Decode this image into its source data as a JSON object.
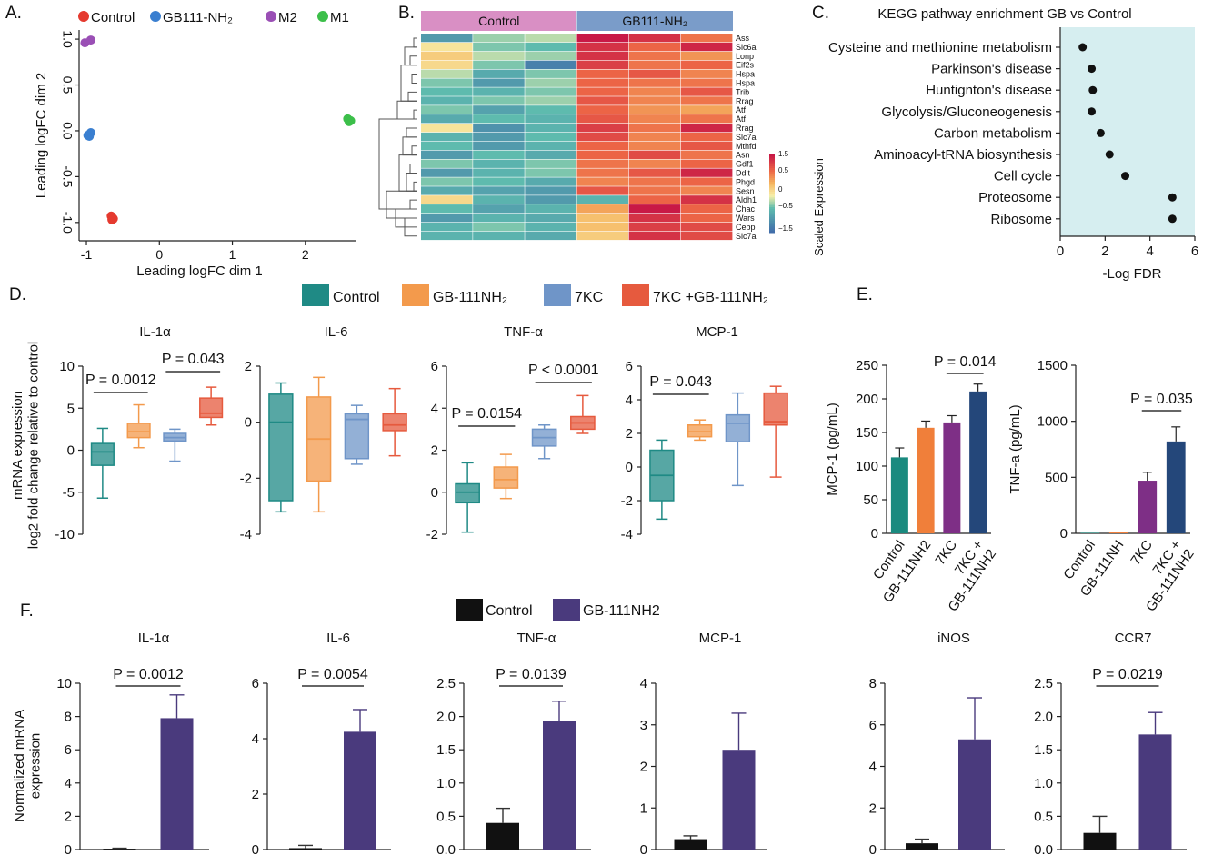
{
  "panel_letters": [
    "A.",
    "B.",
    "C.",
    "D.",
    "E.",
    "F."
  ],
  "colors": {
    "control": "#1f8a85",
    "gb": "#f39a4c",
    "k7": "#6f95c8",
    "k7gb": "#e65a3e",
    "e_control": "#1a8a7f",
    "e_gb": "#f07f3a",
    "e_7kc": "#7e2f86",
    "e_7kcgb": "#24477a",
    "f_control": "#111111",
    "f_gb": "#4a3a7d",
    "mds_control": "#e53a2f",
    "mds_gb": "#3a7fd0",
    "mds_m2": "#9a4fb5",
    "mds_m1": "#3cbf4a",
    "heat_header_control": "#d98fc4",
    "heat_header_gb": "#7a9cc9",
    "kegg_bg": "#d6eef0"
  },
  "chart_data": [
    {
      "id": "A",
      "type": "scatter",
      "xlabel": "Leading logFC dim 1",
      "ylabel": "Leading logFC dim 2",
      "xlim": [
        -1.1,
        2.7
      ],
      "ylim": [
        -1.2,
        1.1
      ],
      "xticks": [
        "-1",
        "0",
        "1",
        "2"
      ],
      "yticks": [
        "1.0",
        "0.5",
        "0.0",
        "-0.5",
        "-1.0"
      ],
      "legend": [
        "Control",
        "GB111-NH₂",
        "M2",
        "M1"
      ],
      "series": [
        {
          "name": "Control",
          "points": [
            [
              -0.66,
              -0.93
            ],
            [
              -0.64,
              -0.95
            ],
            [
              -0.65,
              -0.97
            ],
            [
              -0.63,
              -0.96
            ]
          ]
        },
        {
          "name": "GB111-NH₂",
          "points": [
            [
              -0.98,
              -0.05
            ],
            [
              -0.94,
              -0.02
            ],
            [
              -0.96,
              -0.06
            ]
          ]
        },
        {
          "name": "M2",
          "points": [
            [
              -1.02,
              0.96
            ],
            [
              -0.94,
              0.99
            ]
          ]
        },
        {
          "name": "M1",
          "points": [
            [
              2.58,
              0.13
            ],
            [
              2.62,
              0.11
            ],
            [
              2.6,
              0.1
            ]
          ]
        }
      ]
    },
    {
      "id": "B",
      "type": "heatmap",
      "groups": [
        "Control",
        "GB111-NH₂"
      ],
      "genes": [
        "Ass",
        "Slc6a",
        "Lonp",
        "Eif2s",
        "Hspa",
        "Hspa",
        "Trib",
        "Rrag",
        "Atf",
        "Atf",
        "Rrag",
        "Slc7a",
        "Mthfd",
        "Asn",
        "Gdf1",
        "Ddit",
        "Phgd",
        "Sesn",
        "Aldh1",
        "Chac",
        "Wars",
        "Cebp",
        "Slc7a"
      ],
      "colorbar_ticks": [
        "1.5",
        "0.5",
        "0",
        "−0.5",
        "−1.5"
      ],
      "colorbar_label": "Scaled Expression",
      "values": [
        [
          -0.9,
          -0.3,
          -0.2,
          1.6,
          1.4,
          0.9
        ],
        [
          0.1,
          -0.4,
          -0.5,
          1.4,
          1.0,
          1.5
        ],
        [
          0.3,
          -0.2,
          -0.3,
          1.4,
          0.9,
          0.7
        ],
        [
          0.2,
          -0.4,
          -1.2,
          1.3,
          0.9,
          1.0
        ],
        [
          -0.2,
          -0.7,
          -0.4,
          1.0,
          1.1,
          0.8
        ],
        [
          -0.4,
          -0.9,
          -0.3,
          1.0,
          0.9,
          0.9
        ],
        [
          -0.5,
          -0.6,
          -0.4,
          1.0,
          0.8,
          1.1
        ],
        [
          -0.6,
          -0.4,
          -0.3,
          1.1,
          0.8,
          0.9
        ],
        [
          -0.4,
          -0.8,
          -0.5,
          1.0,
          0.7,
          0.6
        ],
        [
          -0.7,
          -0.5,
          -0.6,
          1.1,
          0.8,
          0.9
        ],
        [
          0.1,
          -1.0,
          -0.6,
          1.3,
          0.9,
          1.5
        ],
        [
          -0.6,
          -0.9,
          -0.5,
          1.2,
          0.8,
          1.0
        ],
        [
          -0.5,
          -0.9,
          -0.6,
          1.0,
          0.8,
          1.1
        ],
        [
          -0.9,
          -0.5,
          -0.7,
          1.0,
          1.2,
          0.9
        ],
        [
          -0.4,
          -0.6,
          -0.4,
          0.9,
          0.8,
          1.0
        ],
        [
          -0.9,
          -0.6,
          -0.4,
          0.9,
          1.1,
          1.5
        ],
        [
          -0.4,
          -0.5,
          -0.7,
          0.8,
          0.9,
          1.0
        ],
        [
          -0.7,
          -0.8,
          -0.9,
          1.1,
          0.9,
          0.8
        ],
        [
          0.2,
          -0.6,
          -0.9,
          -0.6,
          1.0,
          1.4
        ],
        [
          -0.5,
          -0.8,
          -0.6,
          0.6,
          1.6,
          1.0
        ],
        [
          -0.9,
          -0.6,
          -0.7,
          0.4,
          1.4,
          1.0
        ],
        [
          -0.6,
          -0.4,
          -0.6,
          0.4,
          1.3,
          1.2
        ],
        [
          -0.6,
          -0.6,
          -0.7,
          0.3,
          1.4,
          1.2
        ]
      ]
    },
    {
      "id": "C",
      "type": "scatter",
      "title": "KEGG pathway enrichment GB vs Control",
      "xlabel": "-Log FDR",
      "xlim": [
        0,
        6
      ],
      "xticks": [
        "0",
        "2",
        "4",
        "6"
      ],
      "categories": [
        "Cysteine and methionine metabolism",
        "Parkinson's disease",
        "Huntignton's disease",
        "Glycolysis/Gluconeogenesis",
        "Carbon metabolism",
        "Aminoacyl-tRNA biosynthesis",
        "Cell cycle",
        "Proteosome",
        "Ribosome"
      ],
      "values": [
        1.0,
        1.4,
        1.45,
        1.4,
        1.8,
        2.2,
        2.9,
        5.0,
        5.0
      ]
    },
    {
      "id": "D",
      "type": "box",
      "ylabel": "mRNA expression\nlog2 fold change relative to control",
      "legend": [
        "Control",
        "GB-111NH₂",
        "7KC",
        "7KC +GB-111NH₂"
      ],
      "panels": [
        {
          "title": "IL-1α",
          "ylim": [
            -10,
            10
          ],
          "yticks": [
            "10",
            "5",
            "0",
            "-5",
            "-10"
          ],
          "boxes": [
            [
              -5.7,
              -1.8,
              -0.2,
              0.8,
              2.6
            ],
            [
              0.3,
              1.5,
              2.2,
              3.2,
              5.4
            ],
            [
              -1.3,
              1.1,
              1.5,
              2.0,
              2.5
            ],
            [
              3.0,
              3.9,
              4.4,
              6.2,
              7.5
            ]
          ],
          "sig": [
            [
              "P = 0.0012",
              0,
              1
            ],
            [
              "P = 0.043",
              2,
              3
            ]
          ]
        },
        {
          "title": "IL-6",
          "ylim": [
            -4,
            2
          ],
          "yticks": [
            "2",
            "0",
            "-2",
            "-4"
          ],
          "boxes": [
            [
              -3.2,
              -2.8,
              0.0,
              1.0,
              1.4
            ],
            [
              -3.2,
              -2.1,
              -0.6,
              0.9,
              1.6
            ],
            [
              -1.5,
              -1.3,
              0.1,
              0.3,
              0.6
            ],
            [
              -1.2,
              -0.3,
              -0.1,
              0.3,
              1.2
            ]
          ],
          "sig": []
        },
        {
          "title": "TNF-α",
          "ylim": [
            -2,
            6
          ],
          "yticks": [
            "6",
            "4",
            "2",
            "0",
            "-2"
          ],
          "boxes": [
            [
              -1.9,
              -0.5,
              0.0,
              0.4,
              1.4
            ],
            [
              -0.3,
              0.2,
              0.6,
              1.2,
              1.8
            ],
            [
              1.6,
              2.2,
              2.6,
              3.0,
              3.2
            ],
            [
              2.8,
              3.0,
              3.3,
              3.6,
              4.6
            ]
          ],
          "sig": [
            [
              "P = 0.0154",
              0,
              1
            ],
            [
              "P < 0.0001",
              2,
              3
            ]
          ]
        },
        {
          "title": "MCP-1",
          "ylim": [
            -4,
            6
          ],
          "yticks": [
            "6",
            "4",
            "2",
            "0",
            "-2",
            "-4"
          ],
          "boxes": [
            [
              -3.1,
              -2.0,
              -0.5,
              1.0,
              1.6
            ],
            [
              1.6,
              1.8,
              2.1,
              2.5,
              2.8
            ],
            [
              -1.1,
              1.5,
              2.6,
              3.1,
              4.4
            ],
            [
              -0.6,
              2.5,
              2.7,
              4.4,
              4.8
            ]
          ],
          "sig": [
            [
              "P = 0.043",
              0,
              1
            ]
          ]
        }
      ]
    },
    {
      "id": "E",
      "type": "bar",
      "categories": [
        "Control",
        "GB-111NH2",
        "7KC",
        "7KC +\nGB-111NH2"
      ],
      "panels": [
        {
          "ylabel": "MCP-1 (pg/mL)",
          "ylim": [
            0,
            250
          ],
          "yticks": [
            "250",
            "200",
            "150",
            "100",
            "50",
            "0"
          ],
          "values": [
            113,
            157,
            165,
            211
          ],
          "errors": [
            14,
            10,
            10,
            11
          ],
          "sig": [
            [
              "P = 0.014",
              2,
              3
            ]
          ]
        },
        {
          "ylabel": "TNF-a (pg/mL)",
          "ylim": [
            0,
            1500
          ],
          "yticks": [
            "1500",
            "1000",
            "500",
            "0"
          ],
          "categories": [
            "Control",
            "GB-111NH",
            "7KC",
            "7KC +\nGB-111NH2"
          ],
          "values": [
            5,
            8,
            470,
            820
          ],
          "errors": [
            0,
            0,
            75,
            130
          ],
          "sig": [
            [
              "P = 0.035",
              2,
              3
            ]
          ]
        }
      ]
    },
    {
      "id": "F",
      "type": "bar",
      "ylabel": "Normalized mRNA\nexpression",
      "legend": [
        "Control",
        "GB-111NH2"
      ],
      "panels": [
        {
          "title": "IL-1α",
          "ylim": [
            0,
            10
          ],
          "yticks": [
            "10",
            "8",
            "6",
            "4",
            "2",
            "0"
          ],
          "values": [
            0.05,
            7.9
          ],
          "errors": [
            0.03,
            1.4
          ],
          "sig": "P = 0.0012"
        },
        {
          "title": "IL-6",
          "ylim": [
            0,
            6
          ],
          "yticks": [
            "6",
            "4",
            "2",
            "0"
          ],
          "values": [
            0.05,
            4.25
          ],
          "errors": [
            0.1,
            0.8
          ],
          "sig": "P = 0.0054"
        },
        {
          "title": "TNF-α",
          "ylim": [
            0,
            2.5
          ],
          "yticks": [
            "2.5",
            "2.0",
            "1.5",
            "1.0",
            "0.5",
            "0.0"
          ],
          "values": [
            0.4,
            1.93
          ],
          "errors": [
            0.22,
            0.3
          ],
          "sig": "P = 0.0139"
        },
        {
          "title": "MCP-1",
          "ylim": [
            0,
            4
          ],
          "yticks": [
            "4",
            "3",
            "2",
            "1",
            "0"
          ],
          "values": [
            0.25,
            2.4
          ],
          "errors": [
            0.08,
            0.88
          ],
          "sig": ""
        },
        {
          "title": "iNOS",
          "ylim": [
            0,
            8
          ],
          "yticks": [
            "8",
            "6",
            "4",
            "2",
            "0"
          ],
          "values": [
            0.3,
            5.3
          ],
          "errors": [
            0.2,
            2.0
          ],
          "sig": ""
        },
        {
          "title": "CCR7",
          "ylim": [
            0,
            2.5
          ],
          "yticks": [
            "2.5",
            "2.0",
            "1.5",
            "1.0",
            "0.5",
            "0.0"
          ],
          "values": [
            0.25,
            1.73
          ],
          "errors": [
            0.25,
            0.33
          ],
          "sig": "P = 0.0219"
        }
      ]
    }
  ]
}
